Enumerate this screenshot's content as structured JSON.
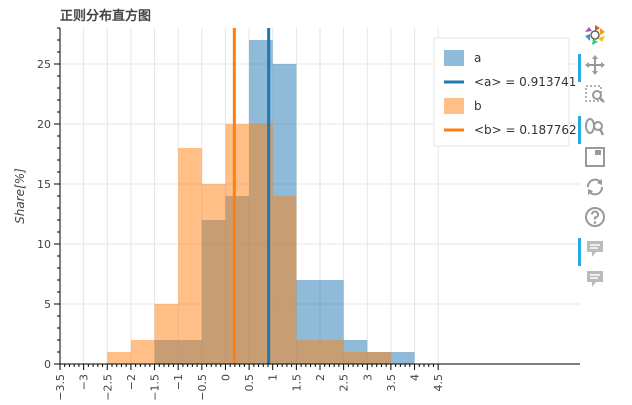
{
  "chart_data": {
    "type": "bar",
    "title": "正则分布直方图",
    "ylabel": "Share[%]",
    "xlabel": "",
    "xlim": [
      -3.5,
      4.5
    ],
    "ylim": [
      0,
      28
    ],
    "x_ticks": [
      "-3.5",
      "-3",
      "-2.5",
      "-2",
      "-1.5",
      "-1",
      "-0.5",
      "0",
      "0.5",
      "1",
      "1.5",
      "2",
      "2.5",
      "3",
      "3.5",
      "4",
      "4.5"
    ],
    "y_ticks": [
      "0",
      "5",
      "10",
      "15",
      "20",
      "25"
    ],
    "grid": true,
    "legend_position": "top-right",
    "series": [
      {
        "name": "a",
        "color": "#1f77b4",
        "bins": [
          {
            "x0": -1.5,
            "x1": -1.0,
            "value": 2
          },
          {
            "x0": -1.0,
            "x1": -0.5,
            "value": 2
          },
          {
            "x0": -0.5,
            "x1": 0.0,
            "value": 12
          },
          {
            "x0": 0.0,
            "x1": 0.5,
            "value": 14
          },
          {
            "x0": 0.5,
            "x1": 1.0,
            "value": 27
          },
          {
            "x0": 1.0,
            "x1": 1.5,
            "value": 25
          },
          {
            "x0": 1.5,
            "x1": 2.0,
            "value": 7
          },
          {
            "x0": 2.0,
            "x1": 2.5,
            "value": 7
          },
          {
            "x0": 2.5,
            "x1": 3.0,
            "value": 2
          },
          {
            "x0": 3.0,
            "x1": 3.5,
            "value": 1
          },
          {
            "x0": 3.5,
            "x1": 4.0,
            "value": 1
          }
        ],
        "mean": 0.913741,
        "mean_label": "<a> = 0.913741"
      },
      {
        "name": "b",
        "color": "#ff7f0e",
        "bins": [
          {
            "x0": -2.5,
            "x1": -2.0,
            "value": 1
          },
          {
            "x0": -2.0,
            "x1": -1.5,
            "value": 2
          },
          {
            "x0": -1.5,
            "x1": -1.0,
            "value": 5
          },
          {
            "x0": -1.0,
            "x1": -0.5,
            "value": 18
          },
          {
            "x0": -0.5,
            "x1": 0.0,
            "value": 15
          },
          {
            "x0": 0.0,
            "x1": 0.5,
            "value": 20
          },
          {
            "x0": 0.5,
            "x1": 1.0,
            "value": 20
          },
          {
            "x0": 1.0,
            "x1": 1.5,
            "value": 14
          },
          {
            "x0": 1.5,
            "x1": 2.0,
            "value": 2
          },
          {
            "x0": 2.0,
            "x1": 2.5,
            "value": 2
          },
          {
            "x0": 2.5,
            "x1": 3.0,
            "value": 1
          },
          {
            "x0": 3.0,
            "x1": 3.5,
            "value": 1
          }
        ],
        "mean": 0.187762,
        "mean_label": "<b> = 0.187762"
      }
    ]
  },
  "toolbar": {
    "tools": [
      {
        "name": "bokeh-logo",
        "icon": "bokeh-logo-icon",
        "active": false
      },
      {
        "name": "pan-tool",
        "icon": "pan-icon",
        "active": true
      },
      {
        "name": "box-zoom-tool",
        "icon": "box-zoom-icon",
        "active": false
      },
      {
        "name": "wheel-zoom-tool",
        "icon": "wheel-zoom-icon",
        "active": true
      },
      {
        "name": "save-tool",
        "icon": "save-icon",
        "active": false
      },
      {
        "name": "reset-tool",
        "icon": "reset-icon",
        "active": false
      },
      {
        "name": "help-tool",
        "icon": "help-icon",
        "active": false
      },
      {
        "name": "hover-tool-1",
        "icon": "hover-icon",
        "active": true
      },
      {
        "name": "hover-tool-2",
        "icon": "hover-icon",
        "active": false
      }
    ]
  }
}
